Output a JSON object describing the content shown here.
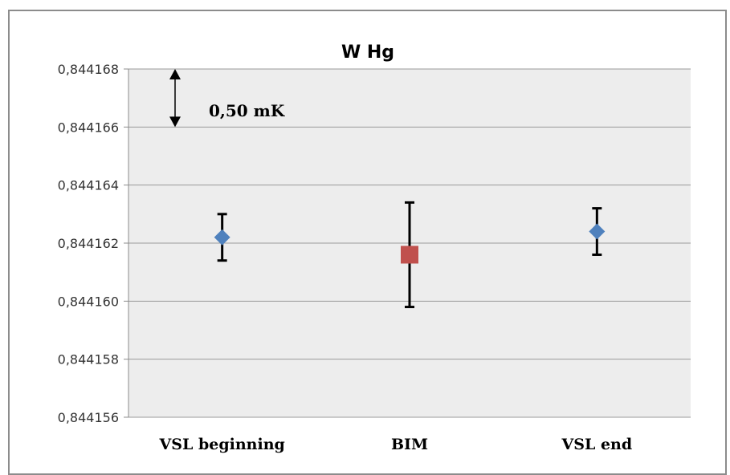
{
  "chart_data": {
    "type": "scatter",
    "title": "W Hg",
    "xlabel": "",
    "ylabel": "",
    "categories": [
      "VSL beginning",
      "BIM",
      "VSL end"
    ],
    "ylim": [
      0.844156,
      0.844168
    ],
    "yticks": [
      0.844156,
      0.844158,
      0.84416,
      0.844162,
      0.844164,
      0.844166,
      0.844168
    ],
    "ytick_labels": [
      "0,844156",
      "0,844158",
      "0,844160",
      "0,844162",
      "0,844164",
      "0,844166",
      "0,844168"
    ],
    "grid": true,
    "points": [
      {
        "category": "VSL beginning",
        "y": 0.8441622,
        "err_low": 0.8441614,
        "err_high": 0.844163,
        "marker": "diamond",
        "color": "#4F81BD"
      },
      {
        "category": "BIM",
        "y": 0.8441616,
        "err_low": 0.8441598,
        "err_high": 0.8441634,
        "marker": "square",
        "color": "#C0504D"
      },
      {
        "category": "VSL end",
        "y": 0.8441624,
        "err_low": 0.8441616,
        "err_high": 0.8441632,
        "marker": "diamond",
        "color": "#4F81BD"
      }
    ],
    "annotation": {
      "text": "0,50 mK",
      "span": [
        0.844166,
        0.844168
      ]
    },
    "colors": {
      "plot_bg": "#EDEDED",
      "grid": "#9A9A9A",
      "axis": "#8C8C8C",
      "errorbar": "#000000"
    }
  }
}
